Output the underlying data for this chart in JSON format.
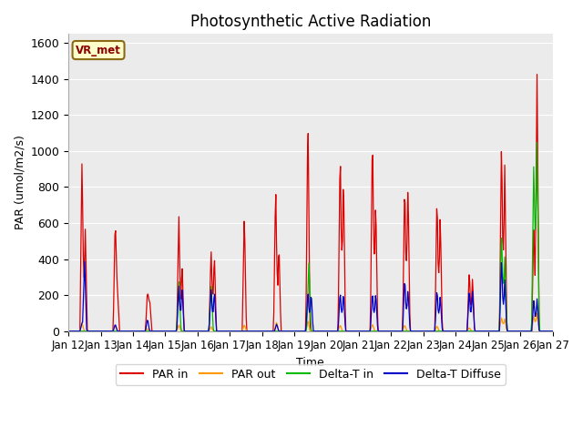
{
  "title": "Photosynthetic Active Radiation",
  "ylabel": "PAR (umol/m2/s)",
  "xlabel": "Time",
  "annotation": "VR_met",
  "ylim": [
    0,
    1650
  ],
  "yticks": [
    0,
    200,
    400,
    600,
    800,
    1000,
    1200,
    1400,
    1600
  ],
  "xtick_labels": [
    "Jan 12",
    "Jan 13",
    "Jan 14",
    "Jan 15",
    "Jan 16",
    "Jan 17",
    "Jan 18",
    "Jan 19",
    "Jan 20",
    "Jan 21",
    "Jan 22",
    "Jan 23",
    "Jan 24",
    "Jan 25",
    "Jan 26",
    "Jan 27"
  ],
  "series": {
    "PAR_in": {
      "color": "#dd0000",
      "label": "PAR in"
    },
    "PAR_out": {
      "color": "#ff9900",
      "label": "PAR out"
    },
    "Delta_T_in": {
      "color": "#00bb00",
      "label": "Delta-T in"
    },
    "Delta_T_Diffuse": {
      "color": "#0000cc",
      "label": "Delta-T Diffuse"
    }
  },
  "plot_bg": "#ebebeb",
  "title_fontsize": 12,
  "axis_fontsize": 9,
  "legend_fontsize": 9
}
